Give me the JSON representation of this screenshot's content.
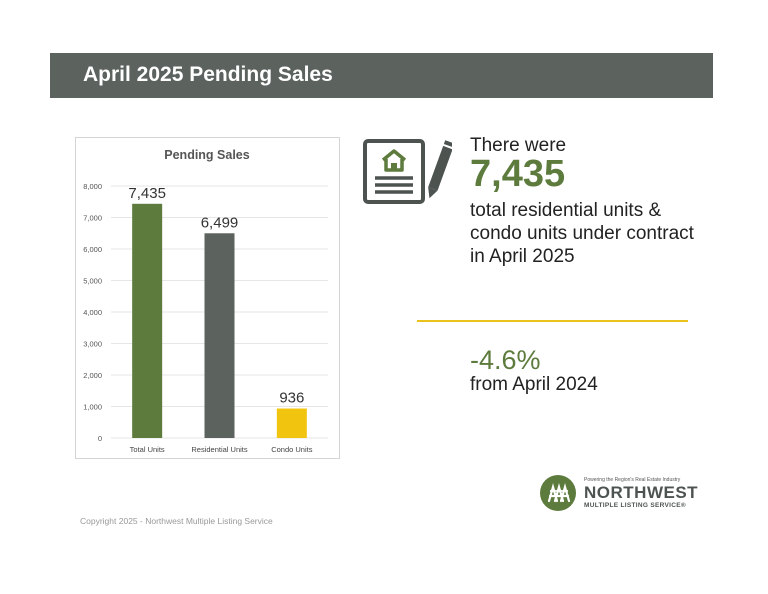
{
  "header": {
    "title": "April 2025 Pending Sales"
  },
  "chart_data": {
    "type": "bar",
    "title": "Pending Sales",
    "categories": [
      "Total Units",
      "Residential Units",
      "Condo Units"
    ],
    "values": [
      7435,
      6499,
      936
    ],
    "value_labels": [
      "7,435",
      "6,499",
      "936"
    ],
    "colors": [
      "#5e7b3e",
      "#5c625e",
      "#f1c40f"
    ],
    "ylim": [
      0,
      8000
    ],
    "yticks": [
      0,
      1000,
      2000,
      3000,
      4000,
      5000,
      6000,
      7000,
      8000
    ],
    "ytick_labels": [
      "0",
      "1,000",
      "2,000",
      "3,000",
      "4,000",
      "5,000",
      "6,000",
      "7,000",
      "8,000"
    ],
    "grid": true,
    "xlabel": "",
    "ylabel": ""
  },
  "stat": {
    "icon": "document-pencil-icon",
    "intro": "There were",
    "value": "7,435",
    "description": "total residential units & condo units under contract in April 2025"
  },
  "change": {
    "value": "-4.6%",
    "description": "from April 2024"
  },
  "logo": {
    "tagline": "Powering the Region's Real Estate Industry",
    "name": "NORTHWEST",
    "subtitle": "MULTIPLE LISTING SERVICE®"
  },
  "footer": {
    "copyright": "Copyright 2025 - Northwest Multiple Listing Service"
  }
}
